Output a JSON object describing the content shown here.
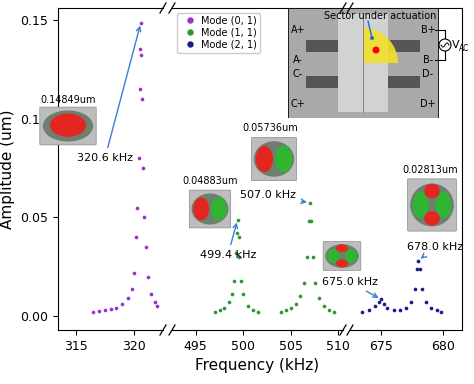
{
  "chart_data": [
    {
      "type": "scatter",
      "y_label": "Amplitude (um)",
      "xlim": [
        313.5,
        322.5
      ],
      "xticks": [
        315,
        320
      ],
      "ylim": [
        -0.007,
        0.156
      ],
      "yticks": [
        {
          "value": 0,
          "label": "0.00"
        },
        {
          "value": 0.05,
          "label": "0.05"
        },
        {
          "value": 0.1,
          "label": "0.10"
        },
        {
          "value": 0.15,
          "label": "0.15"
        }
      ],
      "series": [
        {
          "name": "Mode (0, 1)",
          "color": "#9b30d0",
          "marker": "o",
          "x": [
            316.5,
            317.0,
            317.5,
            318.0,
            318.5,
            319.0,
            319.5,
            319.8,
            320.0,
            320.2,
            320.3,
            320.4,
            320.5,
            320.55,
            320.6,
            320.65,
            320.7,
            320.8,
            320.9,
            321.0,
            321.2,
            321.5,
            321.8,
            322.0
          ],
          "values": [
            0.002,
            0.0025,
            0.003,
            0.0035,
            0.004,
            0.006,
            0.009,
            0.014,
            0.022,
            0.04,
            0.055,
            0.08,
            0.115,
            0.135,
            0.14849,
            0.132,
            0.11,
            0.075,
            0.05,
            0.035,
            0.02,
            0.011,
            0.007,
            0.005
          ]
        }
      ],
      "annotations": [
        {
          "text": "320.6 kHz",
          "amplitude_label": "0.14849um",
          "x": 320.6,
          "y": 0.14849
        }
      ]
    },
    {
      "type": "scatter",
      "x_label": "Frequency (kHz)",
      "tick_labels": "x",
      "legend": "upper left",
      "xlim": [
        492.5,
        510.5
      ],
      "xticks": [
        495,
        500,
        505,
        510
      ],
      "ylim": [
        -0.007,
        0.156
      ],
      "series": [
        {
          "name": "Mode (1, 1)",
          "color": "#2e9a2e",
          "marker": "o",
          "x": [
            497.0,
            497.5,
            498.0,
            498.5,
            498.8,
            499.0,
            499.2,
            499.3,
            499.4,
            499.5,
            499.6,
            499.8,
            500.0,
            500.5,
            501.0,
            501.5,
            504.0,
            504.5,
            505.0,
            505.5,
            506.0,
            506.4,
            506.7,
            506.9,
            507.0,
            507.1,
            507.3,
            507.6,
            508.0,
            508.5,
            509.0,
            509.5
          ],
          "values": [
            0.002,
            0.003,
            0.004,
            0.007,
            0.011,
            0.018,
            0.032,
            0.042,
            0.04883,
            0.04,
            0.03,
            0.018,
            0.011,
            0.005,
            0.003,
            0.002,
            0.002,
            0.003,
            0.004,
            0.006,
            0.01,
            0.017,
            0.03,
            0.048,
            0.05736,
            0.048,
            0.03,
            0.017,
            0.009,
            0.005,
            0.003,
            0.002
          ]
        }
      ],
      "annotations": [
        {
          "text": "499.4 kHz",
          "amplitude_label": "0.04883um",
          "x": 499.4,
          "y": 0.04883
        },
        {
          "text": "507.0 kHz",
          "amplitude_label": "0.05736um",
          "x": 507.0,
          "y": 0.05736
        }
      ]
    },
    {
      "type": "scatter",
      "tick_labels": "x",
      "xlim": [
        672.5,
        681.5
      ],
      "xticks": [
        675,
        680
      ],
      "ylim": [
        -0.007,
        0.156
      ],
      "series": [
        {
          "name": "Mode (2, 1)",
          "color": "#1c1c86",
          "marker": "o",
          "x": [
            673.5,
            674.0,
            674.5,
            674.8,
            675.0,
            675.2,
            675.5,
            676.0,
            676.5,
            677.0,
            677.4,
            677.7,
            677.9,
            678.0,
            678.1,
            678.3,
            678.6,
            679.0,
            679.5,
            679.8
          ],
          "values": [
            0.002,
            0.003,
            0.005,
            0.007,
            0.0085,
            0.006,
            0.004,
            0.003,
            0.003,
            0.004,
            0.007,
            0.014,
            0.024,
            0.02813,
            0.024,
            0.014,
            0.007,
            0.004,
            0.003,
            0.002
          ]
        }
      ],
      "annotations": [
        {
          "text": "675.0 kHz",
          "x": 675.0,
          "y": 0.0085
        },
        {
          "text": "678.0 kHz",
          "amplitude_label": "0.02813um",
          "x": 678.0,
          "y": 0.02813
        }
      ]
    }
  ],
  "inset": {
    "sector_label": "Sector under actuation",
    "electrodes": {
      "left": [
        "A+",
        "A-",
        "C-",
        "C+"
      ],
      "right": [
        "B+",
        "B-",
        "D-",
        "D+"
      ]
    },
    "source_label": "V",
    "source_subscript": "AC"
  }
}
